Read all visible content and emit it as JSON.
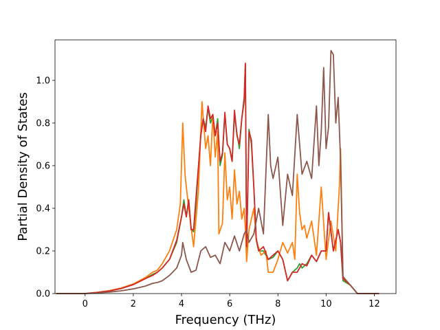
{
  "chart_data": {
    "type": "line",
    "title": "",
    "xlabel": "Frequency (THz)",
    "ylabel": "Partial Density of States",
    "xlim": [
      -1.25,
      12.9
    ],
    "ylim": [
      0,
      1.19
    ],
    "xticks": [
      0,
      2,
      4,
      6,
      8,
      10,
      12
    ],
    "xtick_labels": [
      "0",
      "2",
      "4",
      "6",
      "8",
      "10",
      "12"
    ],
    "yticks": [
      0.0,
      0.2,
      0.4,
      0.6,
      0.8,
      1.0
    ],
    "ytick_labels": [
      "0.0",
      "0.2",
      "0.4",
      "0.6",
      "0.8",
      "1.0"
    ],
    "grid": false,
    "legend": "none",
    "series": [
      {
        "color": "#2ca02c",
        "points": [
          [
            -1.2,
            0
          ],
          [
            0.0,
            0.0
          ],
          [
            0.5,
            0.005
          ],
          [
            1.0,
            0.012
          ],
          [
            1.5,
            0.024
          ],
          [
            2.0,
            0.042
          ],
          [
            2.5,
            0.07
          ],
          [
            2.8,
            0.09
          ],
          [
            3.0,
            0.1
          ],
          [
            3.2,
            0.12
          ],
          [
            3.5,
            0.16
          ],
          [
            3.8,
            0.24
          ],
          [
            4.0,
            0.36
          ],
          [
            4.1,
            0.44
          ],
          [
            4.2,
            0.36
          ],
          [
            4.3,
            0.44
          ],
          [
            4.4,
            0.3
          ],
          [
            4.5,
            0.29
          ],
          [
            4.6,
            0.42
          ],
          [
            4.8,
            0.75
          ],
          [
            4.9,
            0.82
          ],
          [
            5.0,
            0.78
          ],
          [
            5.1,
            0.87
          ],
          [
            5.2,
            0.8
          ],
          [
            5.3,
            0.83
          ],
          [
            5.4,
            0.74
          ],
          [
            5.5,
            0.82
          ],
          [
            5.6,
            0.6
          ],
          [
            5.7,
            0.65
          ],
          [
            5.8,
            0.84
          ],
          [
            5.9,
            0.7
          ],
          [
            6.0,
            0.68
          ],
          [
            6.1,
            0.62
          ],
          [
            6.2,
            0.84
          ],
          [
            6.3,
            0.75
          ],
          [
            6.4,
            0.68
          ],
          [
            6.5,
            0.82
          ],
          [
            6.6,
            0.9
          ],
          [
            6.65,
            1.08
          ],
          [
            6.7,
            0.2
          ],
          [
            6.8,
            0.77
          ],
          [
            6.9,
            0.7
          ],
          [
            7.0,
            0.5
          ],
          [
            7.1,
            0.25
          ],
          [
            7.2,
            0.2
          ],
          [
            7.4,
            0.2
          ],
          [
            7.6,
            0.16
          ],
          [
            7.8,
            0.17
          ],
          [
            8.0,
            0.2
          ],
          [
            8.2,
            0.16
          ],
          [
            8.4,
            0.06
          ],
          [
            8.6,
            0.1
          ],
          [
            8.8,
            0.12
          ],
          [
            8.9,
            0.14
          ],
          [
            9.0,
            0.12
          ],
          [
            9.2,
            0.14
          ],
          [
            9.4,
            0.18
          ],
          [
            9.6,
            0.15
          ],
          [
            9.8,
            0.2
          ],
          [
            10.0,
            0.2
          ],
          [
            10.1,
            0.38
          ],
          [
            10.3,
            0.2
          ],
          [
            10.5,
            0.3
          ],
          [
            10.6,
            0.24
          ],
          [
            10.7,
            0.06
          ],
          [
            11.0,
            0.04
          ],
          [
            11.3,
            0.0
          ],
          [
            12.2,
            0.0
          ]
        ]
      },
      {
        "color": "#ff7f0e",
        "points": [
          [
            -1.2,
            0
          ],
          [
            0.0,
            0.0
          ],
          [
            0.5,
            0.006
          ],
          [
            1.0,
            0.014
          ],
          [
            1.5,
            0.026
          ],
          [
            2.0,
            0.045
          ],
          [
            2.5,
            0.075
          ],
          [
            2.8,
            0.1
          ],
          [
            3.0,
            0.11
          ],
          [
            3.2,
            0.14
          ],
          [
            3.5,
            0.2
          ],
          [
            3.8,
            0.3
          ],
          [
            3.95,
            0.42
          ],
          [
            4.05,
            0.8
          ],
          [
            4.15,
            0.55
          ],
          [
            4.3,
            0.4
          ],
          [
            4.5,
            0.22
          ],
          [
            4.7,
            0.48
          ],
          [
            4.85,
            0.9
          ],
          [
            5.0,
            0.68
          ],
          [
            5.1,
            0.74
          ],
          [
            5.2,
            0.6
          ],
          [
            5.3,
            0.84
          ],
          [
            5.4,
            0.64
          ],
          [
            5.5,
            0.76
          ],
          [
            5.55,
            0.28
          ],
          [
            5.7,
            0.33
          ],
          [
            5.8,
            0.66
          ],
          [
            5.9,
            0.44
          ],
          [
            6.0,
            0.5
          ],
          [
            6.1,
            0.35
          ],
          [
            6.2,
            0.58
          ],
          [
            6.3,
            0.42
          ],
          [
            6.4,
            0.48
          ],
          [
            6.5,
            0.35
          ],
          [
            6.6,
            0.4
          ],
          [
            6.65,
            0.3
          ],
          [
            6.7,
            0.15
          ],
          [
            6.8,
            0.3
          ],
          [
            7.0,
            0.4
          ],
          [
            7.1,
            0.25
          ],
          [
            7.3,
            0.18
          ],
          [
            7.5,
            0.2
          ],
          [
            7.6,
            0.1
          ],
          [
            7.8,
            0.1
          ],
          [
            8.0,
            0.16
          ],
          [
            8.2,
            0.24
          ],
          [
            8.4,
            0.19
          ],
          [
            8.6,
            0.24
          ],
          [
            8.7,
            0.16
          ],
          [
            8.8,
            0.56
          ],
          [
            8.9,
            0.38
          ],
          [
            9.0,
            0.3
          ],
          [
            9.1,
            0.32
          ],
          [
            9.2,
            0.26
          ],
          [
            9.4,
            0.34
          ],
          [
            9.6,
            0.18
          ],
          [
            9.8,
            0.5
          ],
          [
            10.0,
            0.16
          ],
          [
            10.2,
            0.34
          ],
          [
            10.4,
            0.2
          ],
          [
            10.55,
            0.5
          ],
          [
            10.6,
            0.68
          ],
          [
            10.7,
            0.07
          ],
          [
            11.0,
            0.04
          ],
          [
            11.3,
            0.0
          ],
          [
            12.2,
            0.0
          ]
        ]
      },
      {
        "color": "#d62728",
        "points": [
          [
            -1.2,
            0
          ],
          [
            0.0,
            0.0
          ],
          [
            0.5,
            0.005
          ],
          [
            1.0,
            0.012
          ],
          [
            1.5,
            0.024
          ],
          [
            2.0,
            0.042
          ],
          [
            2.5,
            0.07
          ],
          [
            2.8,
            0.085
          ],
          [
            3.0,
            0.1
          ],
          [
            3.2,
            0.12
          ],
          [
            3.5,
            0.16
          ],
          [
            3.8,
            0.25
          ],
          [
            4.0,
            0.36
          ],
          [
            4.1,
            0.42
          ],
          [
            4.2,
            0.36
          ],
          [
            4.3,
            0.44
          ],
          [
            4.4,
            0.3
          ],
          [
            4.5,
            0.3
          ],
          [
            4.6,
            0.45
          ],
          [
            4.8,
            0.74
          ],
          [
            4.9,
            0.82
          ],
          [
            5.0,
            0.76
          ],
          [
            5.1,
            0.88
          ],
          [
            5.2,
            0.82
          ],
          [
            5.3,
            0.84
          ],
          [
            5.4,
            0.74
          ],
          [
            5.5,
            0.8
          ],
          [
            5.6,
            0.62
          ],
          [
            5.7,
            0.66
          ],
          [
            5.8,
            0.85
          ],
          [
            5.9,
            0.7
          ],
          [
            6.0,
            0.68
          ],
          [
            6.1,
            0.62
          ],
          [
            6.2,
            0.86
          ],
          [
            6.3,
            0.74
          ],
          [
            6.4,
            0.7
          ],
          [
            6.5,
            0.82
          ],
          [
            6.6,
            0.92
          ],
          [
            6.65,
            1.08
          ],
          [
            6.7,
            0.22
          ],
          [
            6.8,
            0.76
          ],
          [
            6.9,
            0.72
          ],
          [
            7.0,
            0.5
          ],
          [
            7.1,
            0.26
          ],
          [
            7.2,
            0.2
          ],
          [
            7.4,
            0.22
          ],
          [
            7.6,
            0.16
          ],
          [
            7.8,
            0.18
          ],
          [
            8.0,
            0.2
          ],
          [
            8.2,
            0.16
          ],
          [
            8.4,
            0.06
          ],
          [
            8.6,
            0.1
          ],
          [
            8.8,
            0.1
          ],
          [
            9.0,
            0.14
          ],
          [
            9.2,
            0.13
          ],
          [
            9.4,
            0.18
          ],
          [
            9.6,
            0.15
          ],
          [
            9.8,
            0.2
          ],
          [
            10.0,
            0.2
          ],
          [
            10.1,
            0.38
          ],
          [
            10.3,
            0.2
          ],
          [
            10.5,
            0.3
          ],
          [
            10.6,
            0.24
          ],
          [
            10.7,
            0.07
          ],
          [
            11.0,
            0.04
          ],
          [
            11.3,
            0.0
          ],
          [
            12.2,
            0.0
          ]
        ]
      },
      {
        "color": "#8c564b",
        "points": [
          [
            -1.2,
            0
          ],
          [
            0.0,
            0.0
          ],
          [
            0.5,
            0.003
          ],
          [
            1.0,
            0.007
          ],
          [
            1.5,
            0.013
          ],
          [
            2.0,
            0.022
          ],
          [
            2.5,
            0.035
          ],
          [
            2.8,
            0.048
          ],
          [
            3.0,
            0.052
          ],
          [
            3.2,
            0.06
          ],
          [
            3.5,
            0.085
          ],
          [
            3.8,
            0.12
          ],
          [
            4.0,
            0.18
          ],
          [
            4.05,
            0.24
          ],
          [
            4.2,
            0.16
          ],
          [
            4.4,
            0.1
          ],
          [
            4.6,
            0.11
          ],
          [
            4.8,
            0.2
          ],
          [
            5.0,
            0.22
          ],
          [
            5.2,
            0.17
          ],
          [
            5.4,
            0.18
          ],
          [
            5.6,
            0.14
          ],
          [
            5.8,
            0.24
          ],
          [
            6.0,
            0.2
          ],
          [
            6.2,
            0.27
          ],
          [
            6.4,
            0.2
          ],
          [
            6.6,
            0.28
          ],
          [
            6.7,
            0.3
          ],
          [
            6.8,
            0.24
          ],
          [
            7.0,
            0.28
          ],
          [
            7.2,
            0.4
          ],
          [
            7.4,
            0.28
          ],
          [
            7.6,
            0.84
          ],
          [
            7.7,
            0.6
          ],
          [
            7.8,
            0.54
          ],
          [
            8.0,
            0.64
          ],
          [
            8.2,
            0.32
          ],
          [
            8.4,
            0.56
          ],
          [
            8.6,
            0.46
          ],
          [
            8.8,
            0.84
          ],
          [
            9.0,
            0.56
          ],
          [
            9.2,
            0.62
          ],
          [
            9.4,
            0.54
          ],
          [
            9.6,
            0.88
          ],
          [
            9.7,
            0.6
          ],
          [
            9.8,
            0.76
          ],
          [
            9.9,
            1.06
          ],
          [
            10.0,
            0.68
          ],
          [
            10.1,
            0.78
          ],
          [
            10.2,
            1.14
          ],
          [
            10.3,
            1.12
          ],
          [
            10.4,
            0.8
          ],
          [
            10.5,
            0.92
          ],
          [
            10.6,
            0.62
          ],
          [
            10.7,
            0.08
          ],
          [
            11.0,
            0.04
          ],
          [
            11.3,
            0.0
          ],
          [
            12.2,
            0.0
          ]
        ]
      }
    ]
  }
}
